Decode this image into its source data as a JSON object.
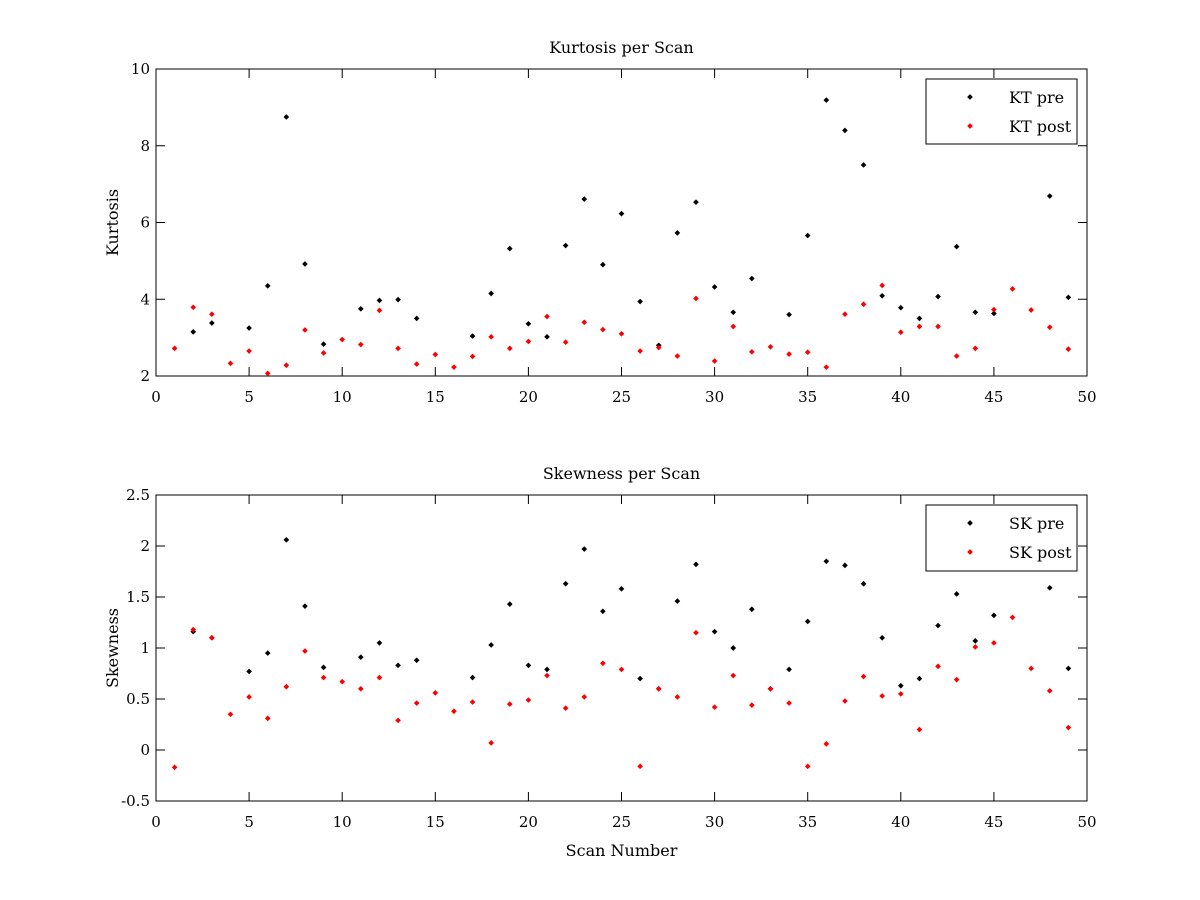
{
  "chart_data": [
    {
      "type": "scatter",
      "title": "Kurtosis per Scan",
      "xlabel": "",
      "ylabel": "Kurtosis",
      "xlim": [
        0,
        50
      ],
      "ylim": [
        2,
        10
      ],
      "xticks": [
        0,
        5,
        10,
        15,
        20,
        25,
        30,
        35,
        40,
        45,
        50
      ],
      "yticks": [
        2,
        4,
        6,
        8,
        10
      ],
      "grid": false,
      "legend_position": "top-right",
      "series": [
        {
          "name": "KT pre",
          "color": "#000000",
          "points": [
            [
              2,
              3.15
            ],
            [
              3,
              3.38
            ],
            [
              5,
              3.25
            ],
            [
              6,
              4.35
            ],
            [
              7,
              8.75
            ],
            [
              8,
              4.92
            ],
            [
              9,
              2.83
            ],
            [
              11,
              3.75
            ],
            [
              12,
              3.97
            ],
            [
              13,
              3.99
            ],
            [
              14,
              3.5
            ],
            [
              17,
              3.04
            ],
            [
              18,
              4.15
            ],
            [
              19,
              5.32
            ],
            [
              20,
              3.36
            ],
            [
              21,
              3.02
            ],
            [
              22,
              5.4
            ],
            [
              23,
              6.61
            ],
            [
              24,
              4.9
            ],
            [
              25,
              6.23
            ],
            [
              26,
              3.94
            ],
            [
              27,
              2.8
            ],
            [
              28,
              5.73
            ],
            [
              29,
              6.53
            ],
            [
              30,
              4.32
            ],
            [
              31,
              3.66
            ],
            [
              32,
              4.54
            ],
            [
              34,
              3.6
            ],
            [
              35,
              5.66
            ],
            [
              36,
              9.19
            ],
            [
              37,
              8.4
            ],
            [
              38,
              7.5
            ],
            [
              39,
              4.09
            ],
            [
              40,
              3.78
            ],
            [
              41,
              3.5
            ],
            [
              42,
              4.07
            ],
            [
              43,
              5.37
            ],
            [
              44,
              3.66
            ],
            [
              45,
              3.63
            ],
            [
              48,
              6.69
            ],
            [
              49,
              4.05
            ]
          ]
        },
        {
          "name": "KT post",
          "color": "#ff0000",
          "points": [
            [
              1,
              2.72
            ],
            [
              2,
              3.79
            ],
            [
              3,
              3.61
            ],
            [
              4,
              2.33
            ],
            [
              5,
              2.65
            ],
            [
              6,
              2.07
            ],
            [
              7,
              2.28
            ],
            [
              8,
              3.2
            ],
            [
              9,
              2.6
            ],
            [
              10,
              2.95
            ],
            [
              11,
              2.82
            ],
            [
              12,
              3.71
            ],
            [
              13,
              2.72
            ],
            [
              14,
              2.31
            ],
            [
              15,
              2.56
            ],
            [
              16,
              2.23
            ],
            [
              17,
              2.51
            ],
            [
              18,
              3.02
            ],
            [
              19,
              2.72
            ],
            [
              20,
              2.9
            ],
            [
              21,
              3.55
            ],
            [
              22,
              2.88
            ],
            [
              23,
              3.4
            ],
            [
              24,
              3.21
            ],
            [
              25,
              3.1
            ],
            [
              26,
              2.65
            ],
            [
              27,
              2.74
            ],
            [
              28,
              2.52
            ],
            [
              29,
              4.02
            ],
            [
              30,
              2.39
            ],
            [
              31,
              3.29
            ],
            [
              32,
              2.63
            ],
            [
              33,
              2.76
            ],
            [
              34,
              2.57
            ],
            [
              35,
              2.62
            ],
            [
              36,
              2.23
            ],
            [
              37,
              3.61
            ],
            [
              38,
              3.87
            ],
            [
              39,
              4.36
            ],
            [
              40,
              3.14
            ],
            [
              41,
              3.29
            ],
            [
              42,
              3.29
            ],
            [
              43,
              2.52
            ],
            [
              44,
              2.72
            ],
            [
              45,
              3.73
            ],
            [
              46,
              4.27
            ],
            [
              47,
              3.72
            ],
            [
              48,
              3.27
            ],
            [
              49,
              2.7
            ]
          ]
        }
      ]
    },
    {
      "type": "scatter",
      "title": "Skewness per Scan",
      "xlabel": "Scan Number",
      "ylabel": "Skewness",
      "xlim": [
        0,
        50
      ],
      "ylim": [
        -0.5,
        2.5
      ],
      "xticks": [
        0,
        5,
        10,
        15,
        20,
        25,
        30,
        35,
        40,
        45,
        50
      ],
      "yticks": [
        -0.5,
        0,
        0.5,
        1,
        1.5,
        2,
        2.5
      ],
      "grid": false,
      "legend_position": "top-right",
      "series": [
        {
          "name": "SK pre",
          "color": "#000000",
          "points": [
            [
              2,
              1.16
            ],
            [
              3,
              1.1
            ],
            [
              5,
              0.77
            ],
            [
              6,
              0.95
            ],
            [
              7,
              2.06
            ],
            [
              8,
              1.41
            ],
            [
              9,
              0.81
            ],
            [
              11,
              0.91
            ],
            [
              12,
              1.05
            ],
            [
              13,
              0.83
            ],
            [
              14,
              0.88
            ],
            [
              17,
              0.71
            ],
            [
              18,
              1.03
            ],
            [
              19,
              1.43
            ],
            [
              20,
              0.83
            ],
            [
              21,
              0.79
            ],
            [
              22,
              1.63
            ],
            [
              23,
              1.97
            ],
            [
              24,
              1.36
            ],
            [
              25,
              1.58
            ],
            [
              26,
              0.7
            ],
            [
              27,
              0.6
            ],
            [
              28,
              1.46
            ],
            [
              29,
              1.82
            ],
            [
              30,
              1.16
            ],
            [
              31,
              1.0
            ],
            [
              32,
              1.38
            ],
            [
              33,
              0.6
            ],
            [
              34,
              0.79
            ],
            [
              35,
              1.26
            ],
            [
              36,
              1.85
            ],
            [
              37,
              1.81
            ],
            [
              38,
              1.63
            ],
            [
              39,
              1.1
            ],
            [
              40,
              0.63
            ],
            [
              41,
              0.7
            ],
            [
              42,
              1.22
            ],
            [
              43,
              1.53
            ],
            [
              44,
              1.07
            ],
            [
              45,
              1.32
            ],
            [
              48,
              1.59
            ],
            [
              49,
              0.8
            ]
          ]
        },
        {
          "name": "SK post",
          "color": "#ff0000",
          "points": [
            [
              1,
              -0.17
            ],
            [
              2,
              1.18
            ],
            [
              3,
              1.1
            ],
            [
              4,
              0.35
            ],
            [
              5,
              0.52
            ],
            [
              6,
              0.31
            ],
            [
              7,
              0.62
            ],
            [
              8,
              0.97
            ],
            [
              9,
              0.71
            ],
            [
              10,
              0.67
            ],
            [
              11,
              0.6
            ],
            [
              12,
              0.71
            ],
            [
              13,
              0.29
            ],
            [
              14,
              0.46
            ],
            [
              15,
              0.56
            ],
            [
              16,
              0.38
            ],
            [
              17,
              0.47
            ],
            [
              18,
              0.07
            ],
            [
              19,
              0.45
            ],
            [
              20,
              0.49
            ],
            [
              21,
              0.73
            ],
            [
              22,
              0.41
            ],
            [
              23,
              0.52
            ],
            [
              24,
              0.85
            ],
            [
              25,
              0.79
            ],
            [
              26,
              -0.16
            ],
            [
              27,
              0.6
            ],
            [
              28,
              0.52
            ],
            [
              29,
              1.15
            ],
            [
              30,
              0.42
            ],
            [
              31,
              0.73
            ],
            [
              32,
              0.44
            ],
            [
              33,
              0.6
            ],
            [
              34,
              0.46
            ],
            [
              35,
              -0.16
            ],
            [
              36,
              0.06
            ],
            [
              37,
              0.48
            ],
            [
              38,
              0.72
            ],
            [
              39,
              0.53
            ],
            [
              40,
              0.55
            ],
            [
              41,
              0.2
            ],
            [
              42,
              0.82
            ],
            [
              43,
              0.69
            ],
            [
              44,
              1.01
            ],
            [
              45,
              1.05
            ],
            [
              46,
              1.3
            ],
            [
              47,
              0.8
            ],
            [
              48,
              0.58
            ],
            [
              49,
              0.22
            ]
          ]
        }
      ]
    }
  ]
}
